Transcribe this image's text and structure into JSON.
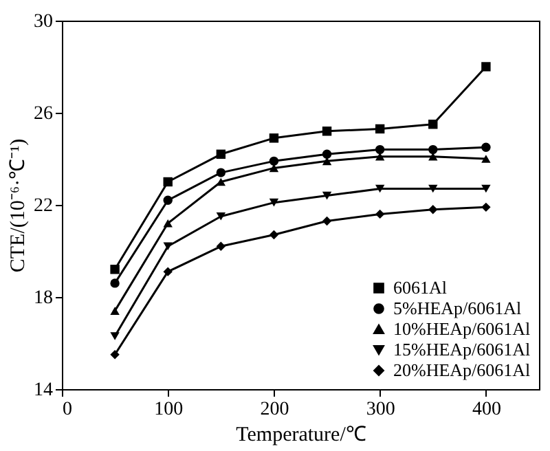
{
  "chart_data": {
    "type": "line",
    "xlabel": "Temperature/℃",
    "ylabel": "CTE/(10⁻⁶·℃⁻¹)",
    "x": [
      50,
      100,
      150,
      200,
      250,
      300,
      350,
      400
    ],
    "series": [
      {
        "name": "6061Al",
        "color": "#000000",
        "marker": "square",
        "values": [
          19.2,
          23.0,
          24.2,
          24.9,
          25.2,
          25.3,
          25.5,
          28.0
        ]
      },
      {
        "name": "5%HEAp/6061Al",
        "color": "#000000",
        "marker": "circle",
        "values": [
          18.6,
          22.2,
          23.4,
          23.9,
          24.2,
          24.4,
          24.4,
          24.5
        ]
      },
      {
        "name": "10%HEAp/6061Al",
        "color": "#000000",
        "marker": "triangle",
        "values": [
          17.4,
          21.2,
          23.0,
          23.6,
          23.9,
          24.1,
          24.1,
          24.0
        ]
      },
      {
        "name": "15%HEAp/6061Al",
        "color": "#000000",
        "marker": "triangle-down",
        "values": [
          16.3,
          20.2,
          21.5,
          22.1,
          22.4,
          22.7,
          22.7,
          22.7
        ]
      },
      {
        "name": "20%HEAp/6061Al",
        "color": "#000000",
        "marker": "diamond",
        "values": [
          15.5,
          19.1,
          20.2,
          20.7,
          21.3,
          21.6,
          21.8,
          21.9
        ]
      }
    ],
    "xlim": [
      0,
      450
    ],
    "xticks": [
      0,
      100,
      200,
      300,
      400
    ],
    "ylim": [
      14,
      30
    ],
    "yticks": [
      14,
      18,
      22,
      26,
      30
    ],
    "grid": false,
    "legend": "bottom right",
    "line_style": "solid"
  }
}
